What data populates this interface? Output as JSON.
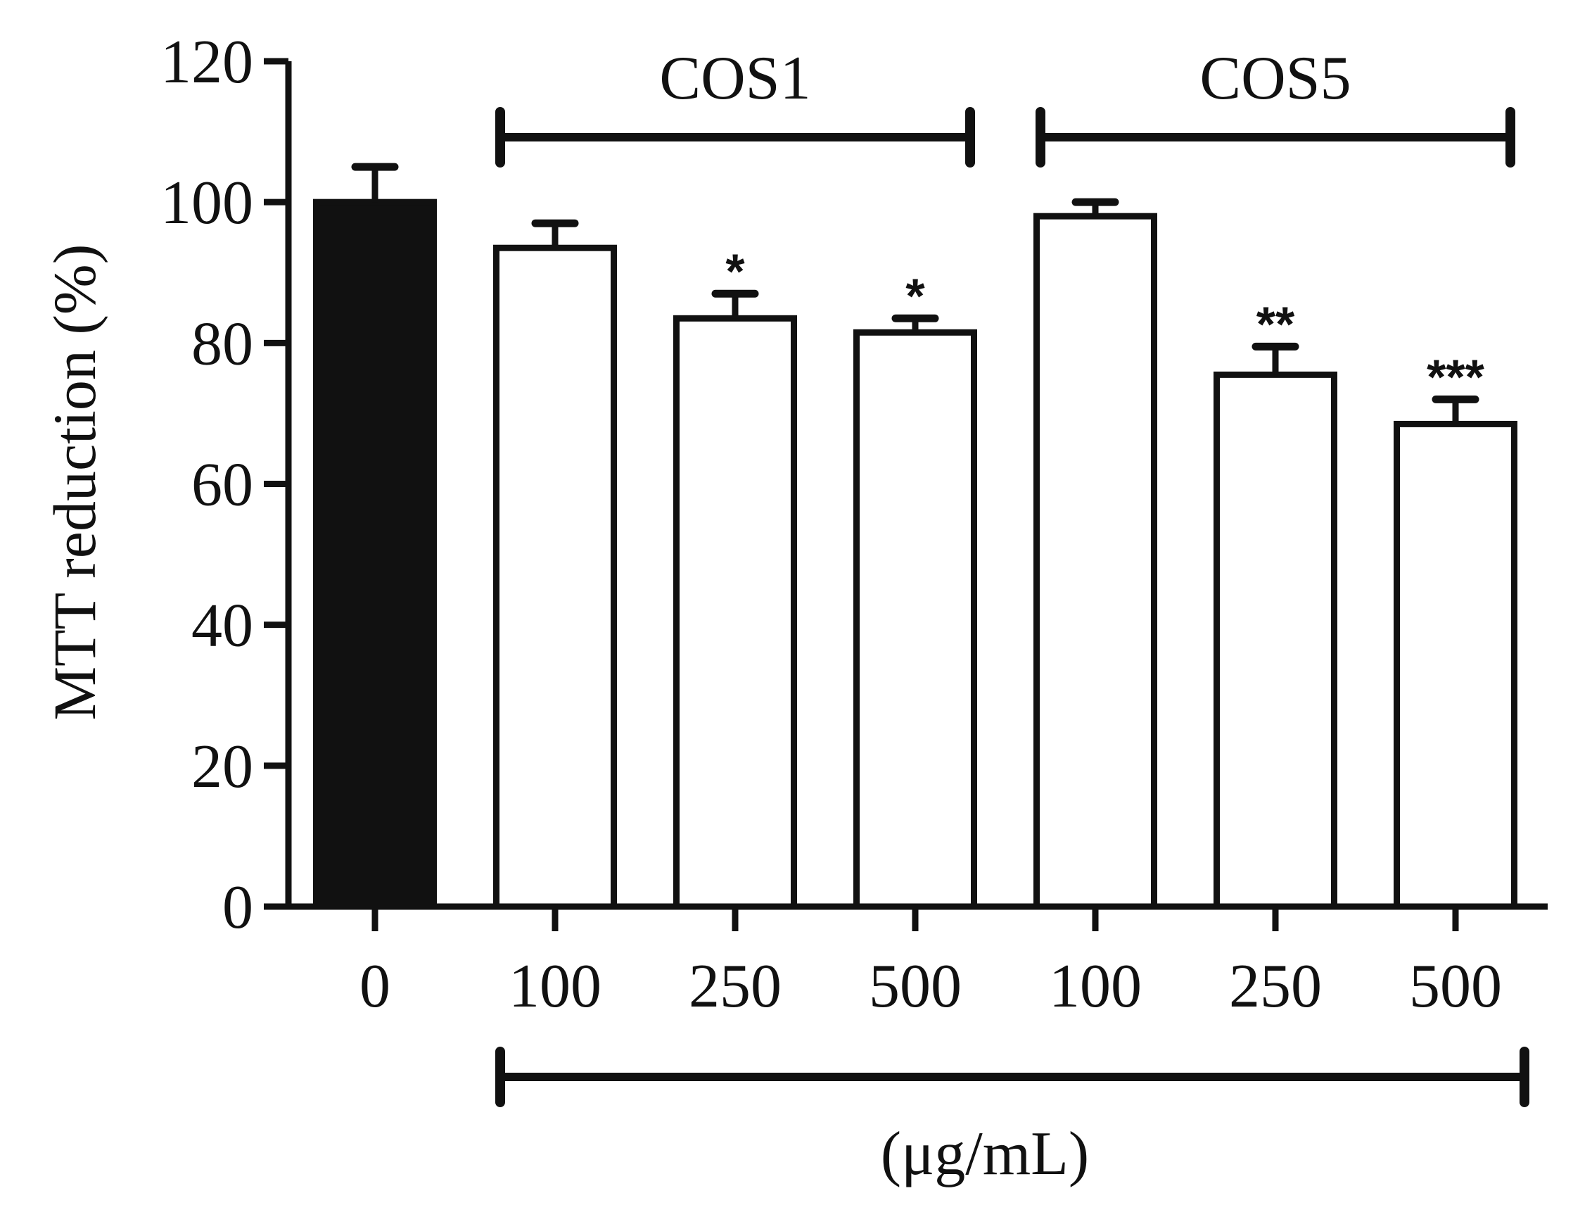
{
  "chart_data": {
    "type": "bar",
    "ylabel": "MTT reduction (%)",
    "xlabel": "(μg/mL)",
    "ylim": [
      0,
      120
    ],
    "yticks": [
      0,
      20,
      40,
      60,
      80,
      100,
      120
    ],
    "grid": false,
    "categories": [
      "0",
      "100",
      "250",
      "500",
      "100",
      "250",
      "500"
    ],
    "values": [
      100,
      93.5,
      83.5,
      81.5,
      98,
      75.5,
      68.5
    ],
    "errors": [
      5,
      3.5,
      3.5,
      2,
      2,
      4,
      3.5
    ],
    "fills": [
      "#111111",
      "#ffffff",
      "#ffffff",
      "#ffffff",
      "#ffffff",
      "#ffffff",
      "#ffffff"
    ],
    "significance": [
      "",
      "",
      "*",
      "*",
      "",
      "**",
      "***"
    ],
    "groups": [
      {
        "name": "COS1",
        "start_index": 1,
        "end_index": 3
      },
      {
        "name": "COS5",
        "start_index": 4,
        "end_index": 6
      }
    ],
    "unit_bracket": {
      "start_index": 1,
      "end_index": 6
    }
  }
}
